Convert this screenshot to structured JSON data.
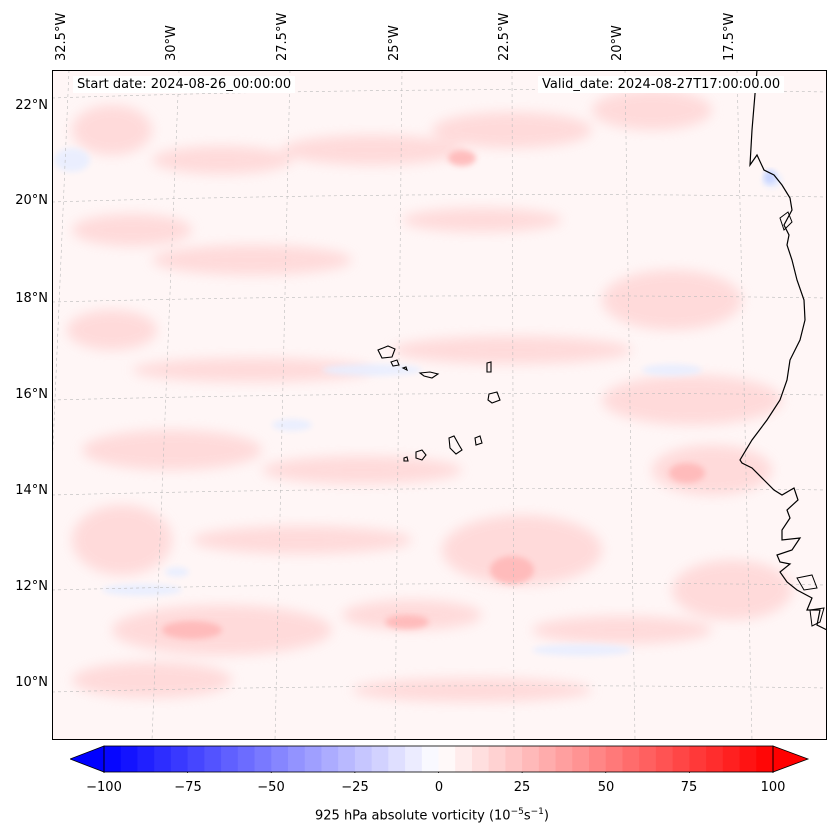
{
  "header": {
    "start_date": "Start date: 2024-08-26_00:00:00",
    "valid_date": "Valid_date: 2024-08-27T17:00:00.00"
  },
  "lon_labels": [
    "32.5°W",
    "30°W",
    "27.5°W",
    "25°W",
    "22.5°W",
    "20°W",
    "17.5°W"
  ],
  "lat_labels": [
    "22°N",
    "20°N",
    "18°N",
    "16°N",
    "14°N",
    "12°N",
    "10°N"
  ],
  "colorbar": {
    "ticks": [
      "−100",
      "−75",
      "−50",
      "−25",
      "0",
      "25",
      "50",
      "75",
      "100"
    ],
    "label_main": "925 hPa absolute vorticity (10",
    "label_exp1": "−5",
    "label_mid": "s",
    "label_exp2": "−1",
    "label_end": ")",
    "range": [
      -100,
      100
    ],
    "neg_color": "#0000ff",
    "pos_color": "#ff0000"
  },
  "colors": {
    "background_field": "#fff7f7",
    "coastline": "#000000",
    "gridline": "#bbbbbb"
  }
}
